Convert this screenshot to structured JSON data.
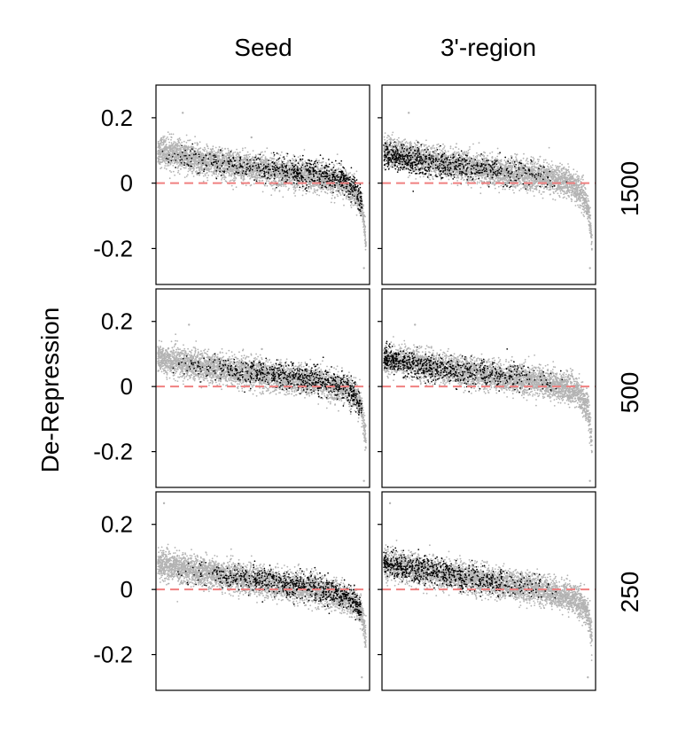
{
  "chart_data": {
    "type": "scatter",
    "layout": "3 rows x 2 columns of small-multiple scatter panels with shared y axis",
    "ylabel": "De-Repression",
    "ylim": [
      -0.31,
      0.3
    ],
    "yticks": [
      0.2,
      0,
      -0.2
    ],
    "ytick_labels": [
      "0.2",
      "0",
      "-0.2"
    ],
    "x_ticks_shown": false,
    "grid": false,
    "reference_line": {
      "y": 0,
      "style": "dashed",
      "color": "#f08080"
    },
    "colors": {
      "background_points": "#b3b3b3",
      "highlight_points": "#000000",
      "reference_line": "#f08080",
      "frame": "#000000"
    },
    "columns": [
      "Seed",
      "3'-region"
    ],
    "rows": [
      "1500",
      "500",
      "250"
    ],
    "point_counts": {
      "background": 4000,
      "highlight": 700
    },
    "panels": [
      {
        "row": "1500",
        "column": "Seed",
        "background_trend": {
          "x": [
            0,
            0.2,
            0.5,
            0.75,
            0.9,
            0.95,
            0.98,
            1.0
          ],
          "y": [
            0.1,
            0.07,
            0.04,
            0.02,
            0.0,
            -0.03,
            -0.07,
            -0.18
          ]
        },
        "highlight_trend": {
          "x": [
            0,
            0.2,
            0.5,
            0.75,
            0.9,
            0.95,
            0.98,
            1.0
          ],
          "y": [
            0.085,
            0.07,
            0.045,
            0.03,
            0.01,
            -0.02,
            -0.06,
            -0.14
          ]
        },
        "highlight_x_range": [
          0.0,
          0.98
        ],
        "highlight_density": "sparse on left, dense on right",
        "outliers": [
          {
            "x": 0.12,
            "y": 0.215
          },
          {
            "x": 0.45,
            "y": 0.14
          },
          {
            "x": 0.99,
            "y": -0.26
          }
        ]
      },
      {
        "row": "1500",
        "column": "3'-region",
        "background_trend": {
          "x": [
            0,
            0.2,
            0.5,
            0.75,
            0.9,
            0.95,
            0.98,
            1.0
          ],
          "y": [
            0.1,
            0.07,
            0.04,
            0.02,
            0.0,
            -0.03,
            -0.07,
            -0.18
          ]
        },
        "highlight_trend": {
          "x": [
            0,
            0.2,
            0.5,
            0.75,
            0.9,
            0.95,
            0.98,
            1.0
          ],
          "y": [
            0.085,
            0.065,
            0.04,
            0.025,
            0.01,
            -0.01,
            -0.03,
            -0.05
          ]
        },
        "highlight_x_range": [
          0.0,
          0.88
        ],
        "highlight_density": "dense on left, sparse on right",
        "outliers": [
          {
            "x": 0.12,
            "y": 0.215
          },
          {
            "x": 0.99,
            "y": -0.26
          }
        ]
      },
      {
        "row": "500",
        "column": "Seed",
        "background_trend": {
          "x": [
            0,
            0.2,
            0.5,
            0.75,
            0.9,
            0.95,
            0.98,
            1.0
          ],
          "y": [
            0.085,
            0.065,
            0.035,
            0.015,
            -0.005,
            -0.03,
            -0.07,
            -0.17
          ]
        },
        "highlight_trend": {
          "x": [
            0,
            0.2,
            0.5,
            0.75,
            0.9,
            0.95,
            0.98,
            1.0
          ],
          "y": [
            0.07,
            0.06,
            0.04,
            0.02,
            0.0,
            -0.03,
            -0.07,
            -0.13
          ]
        },
        "highlight_x_range": [
          0.05,
          0.98
        ],
        "highlight_density": "sparse on left, dense on right",
        "outliers": [
          {
            "x": 0.15,
            "y": 0.19
          },
          {
            "x": 0.5,
            "y": 0.115
          },
          {
            "x": 0.99,
            "y": -0.29
          }
        ]
      },
      {
        "row": "500",
        "column": "3'-region",
        "background_trend": {
          "x": [
            0,
            0.2,
            0.5,
            0.75,
            0.9,
            0.95,
            0.98,
            1.0
          ],
          "y": [
            0.085,
            0.065,
            0.035,
            0.015,
            -0.005,
            -0.03,
            -0.07,
            -0.17
          ]
        },
        "highlight_trend": {
          "x": [
            0,
            0.2,
            0.5,
            0.75,
            0.9,
            0.95,
            0.98,
            1.0
          ],
          "y": [
            0.085,
            0.06,
            0.035,
            0.02,
            0.005,
            -0.01,
            -0.03,
            -0.05
          ]
        },
        "highlight_x_range": [
          0.0,
          0.88
        ],
        "highlight_density": "dense on left, sparse on right",
        "outliers": [
          {
            "x": 0.15,
            "y": 0.19
          },
          {
            "x": 0.99,
            "y": -0.29
          }
        ]
      },
      {
        "row": "250",
        "column": "Seed",
        "background_trend": {
          "x": [
            0,
            0.2,
            0.5,
            0.75,
            0.9,
            0.95,
            0.98,
            1.0
          ],
          "y": [
            0.08,
            0.055,
            0.025,
            0.0,
            -0.025,
            -0.045,
            -0.075,
            -0.15
          ]
        },
        "highlight_trend": {
          "x": [
            0,
            0.2,
            0.5,
            0.75,
            0.9,
            0.95,
            0.98,
            1.0
          ],
          "y": [
            0.06,
            0.05,
            0.03,
            0.005,
            -0.02,
            -0.04,
            -0.07,
            -0.11
          ]
        },
        "highlight_x_range": [
          0.05,
          0.98
        ],
        "highlight_density": "sparse on left, dense on right",
        "outliers": [
          {
            "x": 0.03,
            "y": 0.265
          },
          {
            "x": 0.98,
            "y": -0.27
          }
        ]
      },
      {
        "row": "250",
        "column": "3'-region",
        "background_trend": {
          "x": [
            0,
            0.2,
            0.5,
            0.75,
            0.9,
            0.95,
            0.98,
            1.0
          ],
          "y": [
            0.08,
            0.055,
            0.025,
            0.0,
            -0.025,
            -0.045,
            -0.075,
            -0.15
          ]
        },
        "highlight_trend": {
          "x": [
            0,
            0.2,
            0.5,
            0.75,
            0.9,
            0.95,
            0.98,
            1.0
          ],
          "y": [
            0.08,
            0.055,
            0.03,
            0.01,
            -0.01,
            -0.025,
            -0.04,
            -0.05
          ]
        },
        "highlight_x_range": [
          0.0,
          0.88
        ],
        "highlight_density": "dense on left, sparse on right",
        "outliers": [
          {
            "x": 0.03,
            "y": 0.265
          },
          {
            "x": 0.98,
            "y": -0.27
          }
        ]
      }
    ]
  }
}
